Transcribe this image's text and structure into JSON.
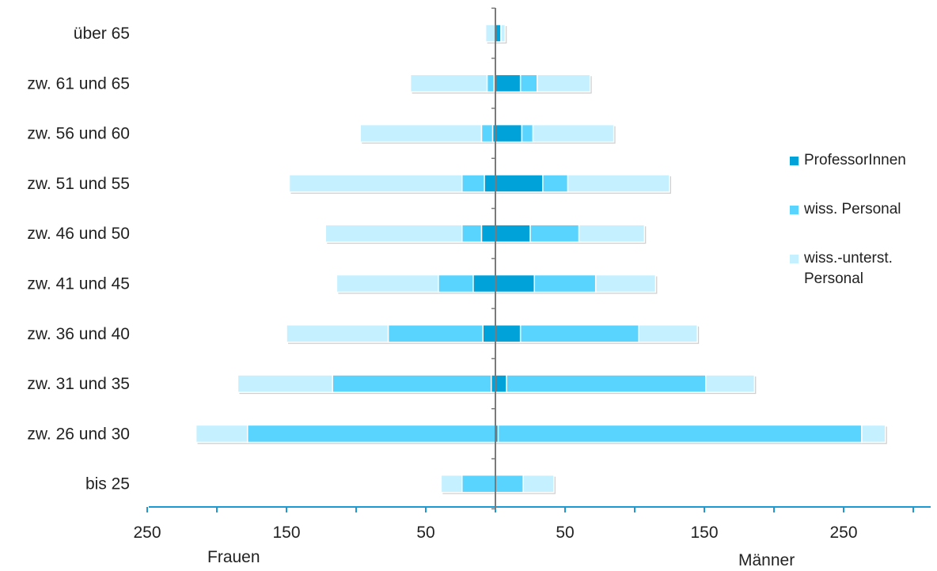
{
  "chart_data": {
    "type": "bar",
    "orientation": "horizontal",
    "categories": [
      "über 65",
      "zw. 61 und 65",
      "zw. 56 und 60",
      "zw. 51 und 55",
      "zw. 46 und 50",
      "zw. 41 und 45",
      "zw. 36 und 40",
      "zw. 31 und 35",
      "zw. 26 und 30",
      "bis 25"
    ],
    "sides": {
      "left": "Frauen",
      "right": "Männer"
    },
    "series": [
      {
        "name": "ProfessorInnen",
        "color": "#00A2DA",
        "frauen": [
          0,
          1,
          2,
          8,
          10,
          16,
          9,
          3,
          0,
          0
        ],
        "maenner": [
          4,
          18,
          19,
          34,
          25,
          28,
          18,
          8,
          2,
          0
        ]
      },
      {
        "name": "wiss. Personal",
        "color": "#59D4FF",
        "frauen": [
          0,
          5,
          8,
          16,
          14,
          25,
          68,
          114,
          178,
          24
        ],
        "maenner": [
          0,
          12,
          8,
          18,
          35,
          44,
          85,
          143,
          261,
          20
        ]
      },
      {
        "name": "wiss.-unterst. Personal",
        "color": "#C5F0FF",
        "frauen": [
          7,
          55,
          87,
          124,
          98,
          73,
          73,
          68,
          37,
          15
        ],
        "maenner": [
          3,
          38,
          58,
          73,
          47,
          43,
          42,
          35,
          17,
          22
        ]
      }
    ],
    "x_tick_labels": [
      "250",
      "150",
      "50",
      "50",
      "150",
      "250"
    ],
    "x_tick_values": [
      -250,
      -150,
      -50,
      50,
      150,
      250
    ],
    "xlim": [
      -250,
      310
    ],
    "legend_position": "right",
    "grid": false
  }
}
